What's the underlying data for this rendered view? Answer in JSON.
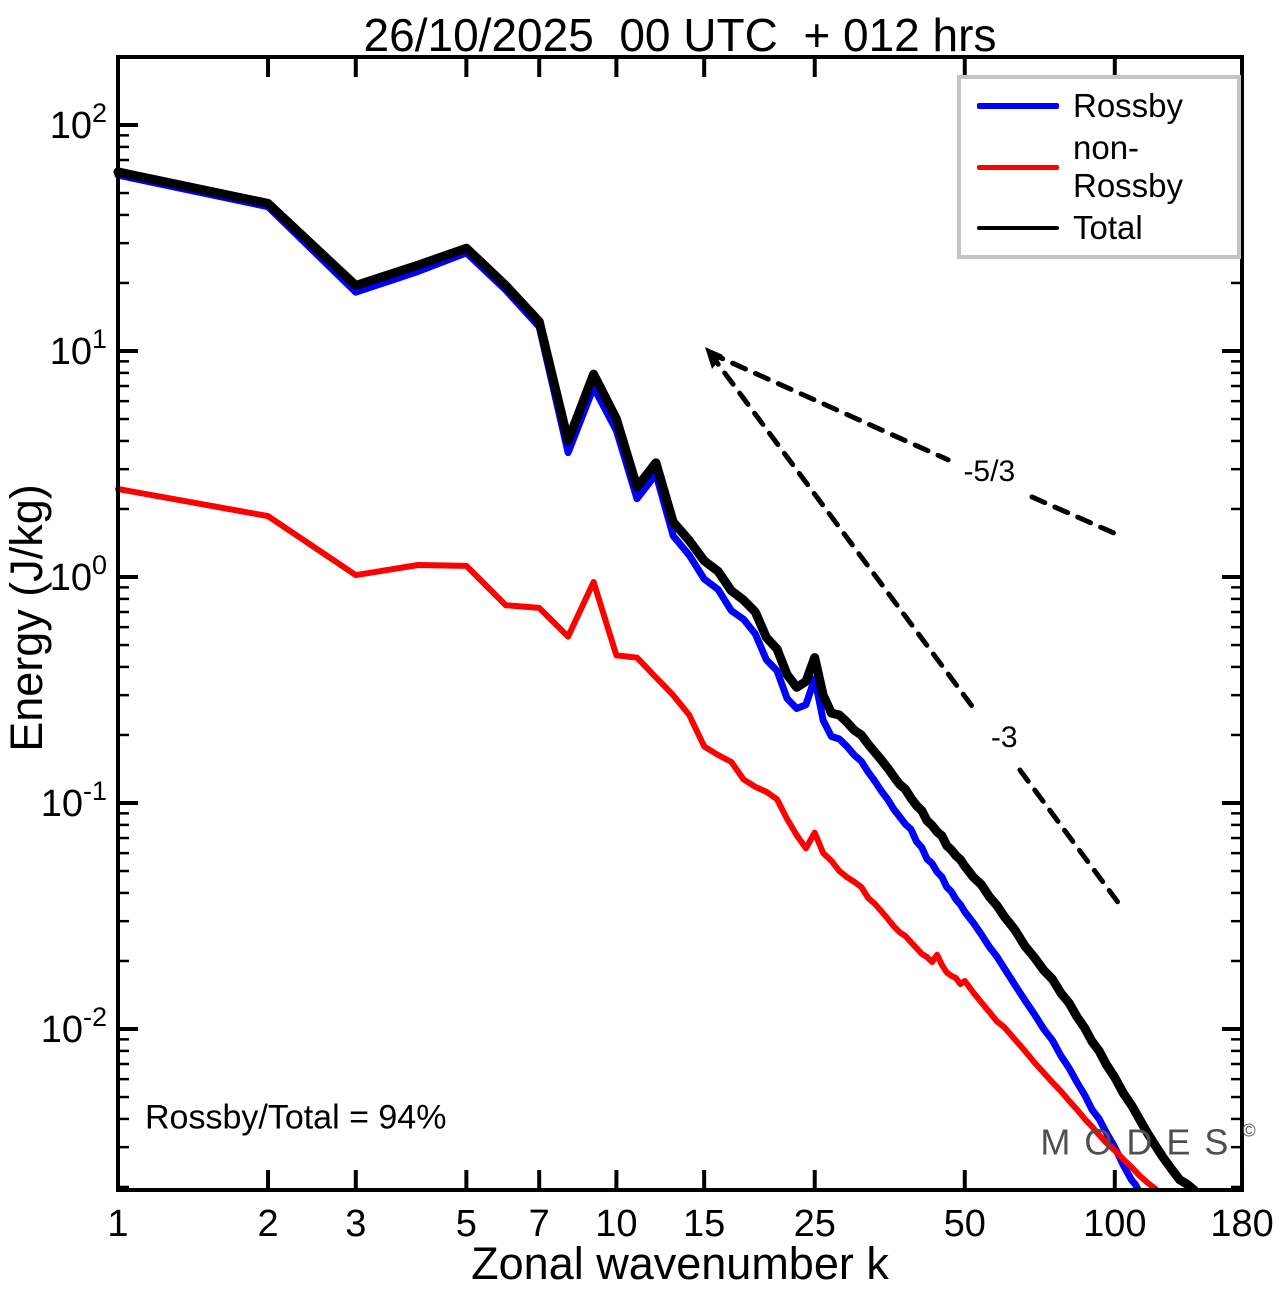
{
  "title": "26/10/2025  00 UTC  + 012 hrs",
  "annotation": "Rossby/Total = 94%",
  "watermark": {
    "text": "MODES",
    "sup": "©"
  },
  "legend": {
    "items": [
      {
        "label": "Rossby",
        "color": "#0000ff",
        "sample_h": 6
      },
      {
        "label": "non-Rossby",
        "color": "#ff0000",
        "sample_h": 5
      },
      {
        "label": "Total",
        "color": "#000000",
        "sample_h": 4
      }
    ]
  },
  "chart_data": {
    "type": "line",
    "title": "26/10/2025  00 UTC  + 012 hrs",
    "xlabel": "Zonal wavenumber k",
    "ylabel": "Energy (J/kg)",
    "x_scale": "log",
    "y_scale": "log",
    "xlim": [
      1,
      180
    ],
    "ylim": [
      0.00194,
      200
    ],
    "grid": false,
    "legend_position": "top-right",
    "x_ticks": [
      1,
      2,
      3,
      5,
      7,
      10,
      15,
      25,
      50,
      100,
      180
    ],
    "x_tick_labels": [
      "1",
      "2",
      "3",
      "5",
      "7",
      "10",
      "15",
      "25",
      "50",
      "100",
      "180"
    ],
    "y_tick_exponents": [
      2,
      1,
      0,
      -1,
      -2
    ],
    "y_minor_mantissas": [
      2,
      3,
      4,
      5,
      6,
      7,
      8,
      9
    ],
    "series": [
      {
        "name": "Rossby",
        "color": "#0000ff",
        "width": 7,
        "points": [
          [
            1,
            60
          ],
          [
            2,
            43.5
          ],
          [
            3,
            18.2
          ],
          [
            4,
            22.5
          ],
          [
            5,
            27.2
          ],
          [
            6,
            18.6
          ],
          [
            7,
            12.8
          ],
          [
            8,
            3.55
          ],
          [
            9,
            6.9
          ],
          [
            10,
            4.45
          ],
          [
            11,
            2.22
          ],
          [
            12,
            2.85
          ],
          [
            13,
            1.52
          ],
          [
            14,
            1.25
          ],
          [
            15,
            0.98
          ],
          [
            16,
            0.88
          ],
          [
            17,
            0.71
          ],
          [
            18,
            0.65
          ],
          [
            19,
            0.56
          ],
          [
            20,
            0.43
          ],
          [
            21,
            0.385
          ],
          [
            22,
            0.29
          ],
          [
            23,
            0.262
          ],
          [
            24,
            0.272
          ],
          [
            25,
            0.355
          ],
          [
            26,
            0.232
          ],
          [
            27,
            0.197
          ],
          [
            28,
            0.192
          ],
          [
            29,
            0.178
          ],
          [
            30,
            0.163
          ],
          [
            31,
            0.153
          ],
          [
            32,
            0.137
          ],
          [
            33,
            0.125
          ],
          [
            34,
            0.113
          ],
          [
            35,
            0.104
          ],
          [
            36,
            0.094
          ],
          [
            37,
            0.087
          ],
          [
            38,
            0.0805
          ],
          [
            39,
            0.0765
          ],
          [
            40,
            0.0675
          ],
          [
            41,
            0.0635
          ],
          [
            42,
            0.0565
          ],
          [
            43,
            0.054
          ],
          [
            44,
            0.0495
          ],
          [
            45,
            0.047
          ],
          [
            46,
            0.0425
          ],
          [
            47,
            0.0405
          ],
          [
            48,
            0.0375
          ],
          [
            49,
            0.0355
          ],
          [
            50,
            0.033
          ],
          [
            52,
            0.0295
          ],
          [
            54,
            0.0262
          ],
          [
            56,
            0.0231
          ],
          [
            58,
            0.0209
          ],
          [
            60,
            0.0186
          ],
          [
            63,
            0.0157
          ],
          [
            66,
            0.0134
          ],
          [
            69,
            0.0116
          ],
          [
            72,
            0.01
          ],
          [
            75,
            0.0089
          ],
          [
            78,
            0.0076
          ],
          [
            81,
            0.0067
          ],
          [
            84,
            0.0058
          ],
          [
            87,
            0.0051
          ],
          [
            90,
            0.0044
          ],
          [
            93,
            0.004
          ],
          [
            96,
            0.0035
          ],
          [
            100,
            0.003
          ],
          [
            104,
            0.0025
          ],
          [
            108,
            0.00215
          ],
          [
            110,
            0.00205
          ],
          [
            112,
            0.0019
          ]
        ]
      },
      {
        "name": "non-Rossby",
        "color": "#ff0000",
        "width": 6,
        "points": [
          [
            1,
            2.45
          ],
          [
            2,
            1.86
          ],
          [
            3,
            1.02
          ],
          [
            4,
            1.13
          ],
          [
            5,
            1.12
          ],
          [
            6,
            0.75
          ],
          [
            7,
            0.73
          ],
          [
            8,
            0.545
          ],
          [
            9,
            0.95
          ],
          [
            10,
            0.45
          ],
          [
            11,
            0.44
          ],
          [
            12,
            0.36
          ],
          [
            13,
            0.3
          ],
          [
            14,
            0.245
          ],
          [
            15,
            0.178
          ],
          [
            16,
            0.163
          ],
          [
            17,
            0.152
          ],
          [
            18,
            0.127
          ],
          [
            19,
            0.118
          ],
          [
            20,
            0.112
          ],
          [
            21,
            0.104
          ],
          [
            22,
            0.085
          ],
          [
            23,
            0.072
          ],
          [
            24,
            0.063
          ],
          [
            25,
            0.074
          ],
          [
            26,
            0.06
          ],
          [
            27,
            0.0555
          ],
          [
            28,
            0.05
          ],
          [
            29,
            0.047
          ],
          [
            30,
            0.0448
          ],
          [
            31,
            0.0425
          ],
          [
            32,
            0.038
          ],
          [
            33,
            0.0358
          ],
          [
            34,
            0.0332
          ],
          [
            35,
            0.0308
          ],
          [
            36,
            0.0285
          ],
          [
            37,
            0.0268
          ],
          [
            38,
            0.0258
          ],
          [
            39,
            0.0242
          ],
          [
            40,
            0.0228
          ],
          [
            41,
            0.0215
          ],
          [
            42,
            0.0208
          ],
          [
            43,
            0.0198
          ],
          [
            44,
            0.0213
          ],
          [
            45,
            0.0192
          ],
          [
            46,
            0.0178
          ],
          [
            47,
            0.0172
          ],
          [
            48,
            0.0168
          ],
          [
            49,
            0.0158
          ],
          [
            50,
            0.0163
          ],
          [
            52,
            0.0145
          ],
          [
            54,
            0.0131
          ],
          [
            56,
            0.0119
          ],
          [
            58,
            0.0108
          ],
          [
            60,
            0.0102
          ],
          [
            63,
            0.009
          ],
          [
            66,
            0.008
          ],
          [
            69,
            0.0071
          ],
          [
            72,
            0.0064
          ],
          [
            75,
            0.0058
          ],
          [
            78,
            0.0053
          ],
          [
            81,
            0.0048
          ],
          [
            84,
            0.0044
          ],
          [
            87,
            0.004
          ],
          [
            90,
            0.0037
          ],
          [
            93,
            0.0034
          ],
          [
            96,
            0.00315
          ],
          [
            100,
            0.0029
          ],
          [
            104,
            0.00265
          ],
          [
            108,
            0.00245
          ],
          [
            112,
            0.00225
          ],
          [
            116,
            0.0021
          ],
          [
            120,
            0.00198
          ],
          [
            124,
            0.00185
          ]
        ]
      },
      {
        "name": "Total",
        "color": "#000000",
        "width": 9,
        "points": [
          [
            1,
            62
          ],
          [
            2,
            45
          ],
          [
            3,
            19.5
          ],
          [
            4,
            24
          ],
          [
            5,
            28.5
          ],
          [
            6,
            19.5
          ],
          [
            7,
            13.5
          ],
          [
            8,
            4.0
          ],
          [
            9,
            7.9
          ],
          [
            10,
            5.0
          ],
          [
            11,
            2.5
          ],
          [
            12,
            3.2
          ],
          [
            13,
            1.75
          ],
          [
            14,
            1.45
          ],
          [
            15,
            1.18
          ],
          [
            16,
            1.06
          ],
          [
            17,
            0.87
          ],
          [
            18,
            0.79
          ],
          [
            19,
            0.7
          ],
          [
            20,
            0.54
          ],
          [
            21,
            0.48
          ],
          [
            22,
            0.37
          ],
          [
            23,
            0.325
          ],
          [
            24,
            0.345
          ],
          [
            25,
            0.44
          ],
          [
            26,
            0.3
          ],
          [
            27,
            0.25
          ],
          [
            28,
            0.245
          ],
          [
            29,
            0.228
          ],
          [
            30,
            0.21
          ],
          [
            31,
            0.2
          ],
          [
            32,
            0.182
          ],
          [
            33,
            0.168
          ],
          [
            34,
            0.155
          ],
          [
            35,
            0.143
          ],
          [
            36,
            0.131
          ],
          [
            37,
            0.121
          ],
          [
            38,
            0.115
          ],
          [
            39,
            0.105
          ],
          [
            40,
            0.0975
          ],
          [
            41,
            0.0925
          ],
          [
            42,
            0.0835
          ],
          [
            43,
            0.0795
          ],
          [
            44,
            0.0745
          ],
          [
            45,
            0.0715
          ],
          [
            46,
            0.0648
          ],
          [
            47,
            0.062
          ],
          [
            48,
            0.0585
          ],
          [
            49,
            0.0562
          ],
          [
            50,
            0.0525
          ],
          [
            52,
            0.047
          ],
          [
            54,
            0.0435
          ],
          [
            56,
            0.0385
          ],
          [
            58,
            0.0352
          ],
          [
            60,
            0.0315
          ],
          [
            63,
            0.0275
          ],
          [
            66,
            0.0233
          ],
          [
            69,
            0.0207
          ],
          [
            72,
            0.0182
          ],
          [
            75,
            0.0166
          ],
          [
            78,
            0.0144
          ],
          [
            81,
            0.013
          ],
          [
            84,
            0.0113
          ],
          [
            87,
            0.0101
          ],
          [
            90,
            0.0088
          ],
          [
            93,
            0.008
          ],
          [
            96,
            0.007
          ],
          [
            100,
            0.0061
          ],
          [
            104,
            0.0052
          ],
          [
            108,
            0.0046
          ],
          [
            112,
            0.004
          ],
          [
            116,
            0.0035
          ],
          [
            120,
            0.0031
          ],
          [
            125,
            0.0027
          ],
          [
            130,
            0.0024
          ],
          [
            135,
            0.00215
          ],
          [
            140,
            0.00205
          ],
          [
            145,
            0.00192
          ],
          [
            150,
            0.00162
          ]
        ]
      }
    ],
    "reference_lines": [
      {
        "label": "-5/3",
        "slope": "-5/3",
        "segments": [
          [
            [
              15.4,
              9.8
            ],
            [
              46.3,
              3.3
            ]
          ],
          [
            [
              68.2,
              2.26
            ],
            [
              104,
              1.5
            ]
          ]
        ],
        "label_at": [
          56,
          2.95
        ]
      },
      {
        "label": "-3",
        "slope": "-3",
        "segments": [
          [
            [
              15.4,
              9.8
            ],
            [
              52.4,
              0.258
            ]
          ],
          [
            [
              64.5,
              0.14
            ],
            [
              102.4,
              0.0354
            ]
          ]
        ],
        "label_at": [
          60,
          0.196
        ]
      }
    ],
    "annotations": [
      "Rossby/Total = 94%"
    ]
  }
}
